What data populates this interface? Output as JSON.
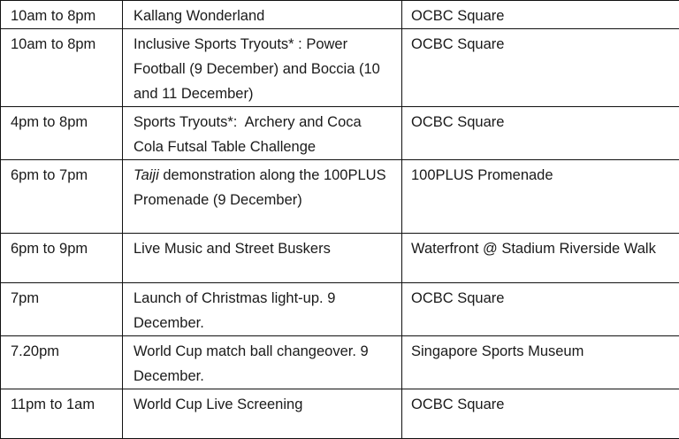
{
  "rows": [
    {
      "time": "10am to 8pm",
      "event_pre": "",
      "event_italic": "",
      "event": "Kallang Wonderland",
      "venue": "OCBC Square"
    },
    {
      "time": "10am to 8pm",
      "event_pre": "",
      "event_italic": "",
      "event": "Inclusive Sports Tryouts* : Power Football (9 December) and Boccia (10 and 11 December)",
      "venue": "OCBC Square"
    },
    {
      "time": "4pm to 8pm",
      "event_pre": "",
      "event_italic": "",
      "event": "Sports Tryouts*:  Archery and Coca Cola Futsal Table Challenge",
      "venue": "OCBC Square"
    },
    {
      "time": "6pm to 7pm",
      "event_pre": "",
      "event_italic": "Taiji",
      "event": " demonstration along the 100PLUS Promenade (9 December)",
      "venue": "100PLUS Promenade"
    },
    {
      "time": "6pm to 9pm",
      "event_pre": "",
      "event_italic": "",
      "event": "Live Music and Street Buskers",
      "venue": "Waterfront @ Stadium Riverside Walk"
    },
    {
      "time": "7pm",
      "event_pre": "",
      "event_italic": "",
      "event": "Launch of Christmas light-up. 9 December.",
      "venue": "OCBC Square"
    },
    {
      "time": "7.20pm",
      "event_pre": "",
      "event_italic": "",
      "event": "World Cup match ball changeover. 9 December.",
      "venue": "Singapore Sports Museum"
    },
    {
      "time": "11pm to 1am",
      "event_pre": "",
      "event_italic": "",
      "event": "World Cup Live Screening",
      "venue": "OCBC Square"
    }
  ]
}
